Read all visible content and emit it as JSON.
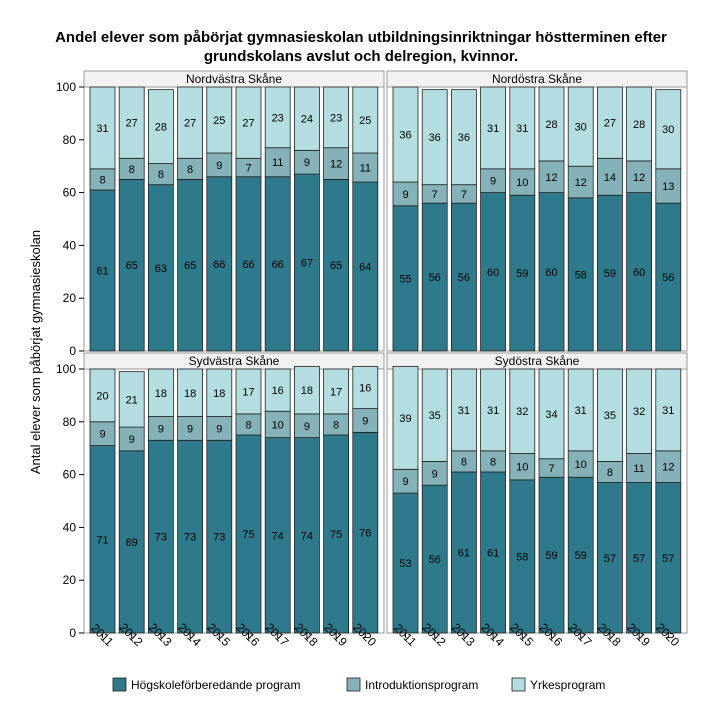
{
  "chart_data": {
    "type": "bar",
    "stacked": true,
    "title_line1": "Andel elever som påbörjat gymnasieskolan utbildningsinriktningar höstterminen efter",
    "title_line2": "grundskolans avslut och delregion, kvinnor.",
    "ylabel": "Antal elever som påbörjat gymnasieskolan",
    "ylim": [
      0,
      100
    ],
    "yticks": [
      "0",
      "20",
      "40",
      "60",
      "80",
      "100"
    ],
    "categories": [
      "2011",
      "2012",
      "2013",
      "2014",
      "2015",
      "2016",
      "2017",
      "2018",
      "2019",
      "2020"
    ],
    "series_names": [
      "Högskoleförberedande program",
      "Introduktionsprogram",
      "Yrkesprogram"
    ],
    "colors": [
      "#2e7a8c",
      "#84b2b8",
      "#b3dde0"
    ],
    "legend_position": "bottom",
    "panels": [
      {
        "name": "Nordvästra Skåne",
        "values": [
          [
            61,
            65,
            63,
            65,
            66,
            66,
            66,
            67,
            65,
            64
          ],
          [
            8,
            8,
            8,
            8,
            9,
            7,
            11,
            9,
            12,
            11
          ],
          [
            31,
            27,
            28,
            27,
            25,
            27,
            23,
            24,
            23,
            25
          ]
        ]
      },
      {
        "name": "Nordöstra Skåne",
        "values": [
          [
            55,
            56,
            56,
            60,
            59,
            60,
            58,
            59,
            60,
            56
          ],
          [
            9,
            7,
            7,
            9,
            10,
            12,
            12,
            14,
            12,
            13
          ],
          [
            36,
            36,
            36,
            31,
            31,
            28,
            30,
            27,
            28,
            30
          ]
        ]
      },
      {
        "name": "Sydvästra Skåne",
        "values": [
          [
            71,
            69,
            73,
            73,
            73,
            75,
            74,
            74,
            75,
            76
          ],
          [
            9,
            9,
            9,
            9,
            9,
            8,
            10,
            9,
            8,
            9
          ],
          [
            20,
            21,
            18,
            18,
            18,
            17,
            16,
            18,
            17,
            16
          ]
        ]
      },
      {
        "name": "Sydöstra Skåne",
        "values": [
          [
            53,
            56,
            61,
            61,
            58,
            59,
            59,
            57,
            57,
            57
          ],
          [
            9,
            9,
            8,
            8,
            10,
            7,
            10,
            8,
            11,
            12
          ],
          [
            39,
            35,
            31,
            31,
            32,
            34,
            31,
            35,
            32,
            31
          ]
        ]
      }
    ]
  }
}
